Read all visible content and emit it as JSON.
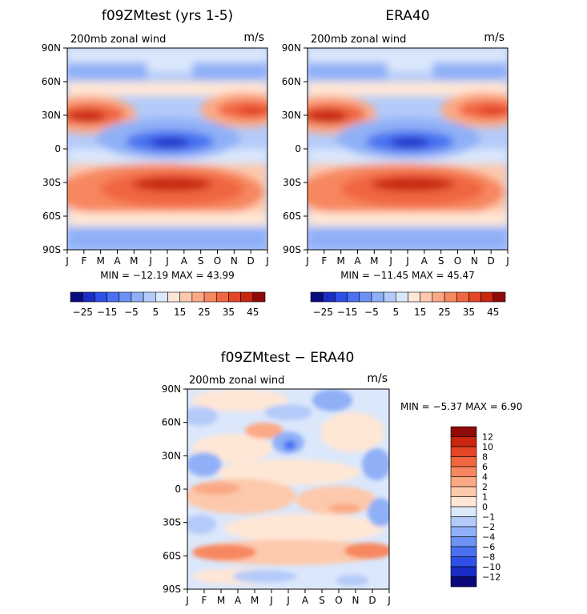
{
  "panels": [
    {
      "title": "f09ZMtest (yrs 1-5)",
      "subtitle": "200mb zonal wind",
      "units": "m/s",
      "stats": "MIN = −12.19  MAX =  43.99"
    },
    {
      "title": "ERA40",
      "subtitle": "200mb zonal wind",
      "units": "m/s",
      "stats": "MIN = −11.45  MAX =  45.47"
    },
    {
      "title": "f09ZMtest − ERA40",
      "subtitle": "200mb zonal wind",
      "units": "m/s",
      "stats": "MIN =  −5.37  MAX =   6.90"
    }
  ],
  "top_colorbar": {
    "labels": [
      "−25",
      "−15",
      "−5",
      "5",
      "15",
      "25",
      "35",
      "45"
    ],
    "colors": [
      "#0b0a7d",
      "#1b2cc4",
      "#2f50e6",
      "#4a72f0",
      "#6b92f4",
      "#8fb0f7",
      "#b4cbf9",
      "#dbe7fb",
      "#ffe7d6",
      "#fdc9ac",
      "#fba985",
      "#f7875f",
      "#f06640",
      "#e34526",
      "#c8260f",
      "#8f0b08"
    ]
  },
  "bottom_colorbar": {
    "labels": [
      "12",
      "10",
      "8",
      "6",
      "4",
      "2",
      "1",
      "0",
      "−1",
      "−2",
      "−4",
      "−6",
      "−8",
      "−10",
      "−12"
    ],
    "colors": [
      "#8f0b08",
      "#c8260f",
      "#e34526",
      "#f06640",
      "#f7875f",
      "#fba985",
      "#fdc9ac",
      "#ffe7d6",
      "#dbe7fb",
      "#b4cbf9",
      "#8fb0f7",
      "#6b92f4",
      "#4a72f0",
      "#2f50e6",
      "#1b2cc4",
      "#0b0a7d"
    ]
  },
  "chart_data": [
    {
      "type": "heatmap",
      "title": "f09ZMtest (yrs 1-5)",
      "subtitle": "200mb zonal wind",
      "units": "m/s",
      "x": [
        "J",
        "F",
        "M",
        "A",
        "M",
        "J",
        "J",
        "A",
        "S",
        "O",
        "N",
        "D",
        "J"
      ],
      "y": [
        "90N",
        "60N",
        "30N",
        "0",
        "30S",
        "60S",
        "90S"
      ],
      "min": -12.19,
      "max": 43.99
    },
    {
      "type": "heatmap",
      "title": "ERA40",
      "subtitle": "200mb zonal wind",
      "units": "m/s",
      "x": [
        "J",
        "F",
        "M",
        "A",
        "M",
        "J",
        "J",
        "A",
        "S",
        "O",
        "N",
        "D",
        "J"
      ],
      "y": [
        "90N",
        "60N",
        "30N",
        "0",
        "30S",
        "60S",
        "90S"
      ],
      "min": -11.45,
      "max": 45.47
    },
    {
      "type": "heatmap",
      "title": "f09ZMtest − ERA40",
      "subtitle": "200mb zonal wind",
      "units": "m/s",
      "x": [
        "J",
        "F",
        "M",
        "A",
        "M",
        "J",
        "J",
        "A",
        "S",
        "O",
        "N",
        "D",
        "J"
      ],
      "y": [
        "90N",
        "60N",
        "30N",
        "0",
        "30S",
        "60S",
        "90S"
      ],
      "min": -5.37,
      "max": 6.9
    }
  ]
}
